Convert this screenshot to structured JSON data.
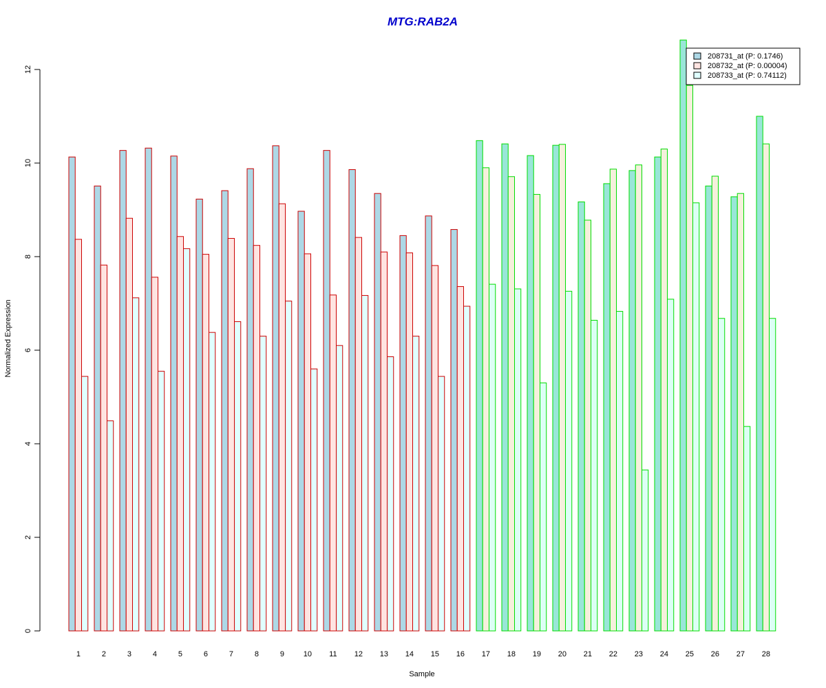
{
  "chart_data": {
    "type": "bar",
    "title": "MTG:RAB2A",
    "xlabel": "Sample",
    "ylabel": "Normalized Expression",
    "ylim": [
      0,
      12.6
    ],
    "yticks": [
      0,
      2,
      4,
      6,
      8,
      10,
      12
    ],
    "grid": false,
    "legend_position": "top-right",
    "categories": [
      "1",
      "2",
      "3",
      "4",
      "5",
      "6",
      "7",
      "8",
      "9",
      "10",
      "11",
      "12",
      "13",
      "14",
      "15",
      "16",
      "17",
      "18",
      "19",
      "20",
      "21",
      "22",
      "23",
      "24",
      "25",
      "26",
      "27",
      "28"
    ],
    "groups": [
      {
        "samples": [
          1,
          16
        ],
        "border_color": "#cc0000",
        "fills": [
          "#add8e6",
          "#ffe4e1",
          "#e0ffff"
        ]
      },
      {
        "samples": [
          17,
          28
        ],
        "border_color": "#00dd00",
        "fills": [
          "#99e6d8",
          "#f5f0dc",
          "#dcfff5"
        ]
      }
    ],
    "series": [
      {
        "name": "208731_at (P: 0.1746)",
        "legend_fill": "#add8e6",
        "values": [
          10.13,
          9.51,
          10.27,
          10.32,
          10.15,
          9.23,
          9.41,
          9.88,
          10.37,
          8.97,
          10.27,
          9.86,
          9.35,
          8.45,
          8.87,
          8.58,
          10.48,
          10.41,
          10.16,
          10.38,
          9.17,
          9.56,
          9.84,
          10.13,
          12.63,
          9.51,
          9.28,
          11.0
        ]
      },
      {
        "name": "208732_at (P: 0.00004)",
        "legend_fill": "#ffe4e1",
        "values": [
          8.37,
          7.82,
          8.82,
          7.56,
          8.43,
          8.05,
          8.39,
          8.24,
          9.13,
          8.06,
          7.18,
          8.41,
          8.1,
          8.08,
          7.81,
          7.36,
          9.9,
          9.71,
          9.33,
          10.4,
          8.78,
          9.87,
          9.96,
          10.3,
          11.66,
          9.72,
          9.35,
          10.41
        ]
      },
      {
        "name": "208733_at (P: 0.74112)",
        "legend_fill": "#e0ffff",
        "values": [
          5.44,
          4.49,
          7.12,
          5.55,
          8.17,
          6.38,
          6.61,
          6.3,
          7.05,
          5.6,
          6.1,
          7.17,
          5.86,
          6.3,
          5.44,
          6.94,
          7.41,
          7.31,
          5.3,
          7.26,
          6.64,
          6.83,
          3.44,
          7.09,
          9.15,
          6.68,
          4.37,
          6.68
        ]
      }
    ]
  }
}
